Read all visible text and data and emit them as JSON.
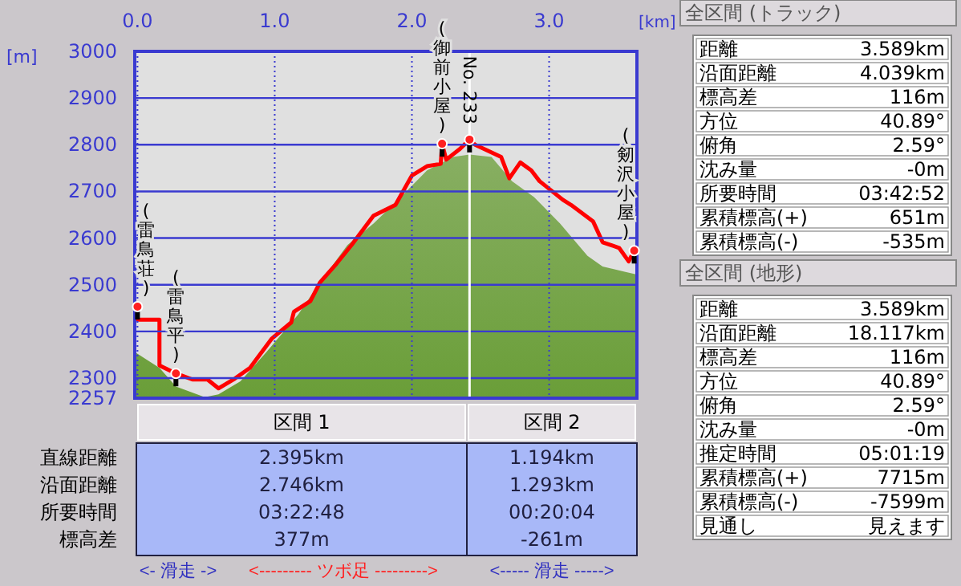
{
  "chart_data": [
    {
      "type": "line",
      "xlabel": "[km]",
      "ylabel": "[m]",
      "xlim": [
        -0.02,
        3.64
      ],
      "ylim": [
        2257,
        3000
      ],
      "xticks": [
        {
          "value": 0,
          "label": "0.0"
        },
        {
          "value": 1,
          "label": "1.0"
        },
        {
          "value": 2,
          "label": "2.0"
        },
        {
          "value": 3,
          "label": "3.0"
        }
      ],
      "yticks": [
        2257,
        2300,
        2400,
        2500,
        2600,
        2700,
        2800,
        2900,
        3000
      ],
      "grid": true,
      "series": [
        {
          "type": "area",
          "color": "#6a9e38",
          "x": [
            -0.02,
            0.16,
            0.28,
            0.49,
            0.59,
            0.75,
            0.94,
            1.17,
            1.33,
            1.53,
            1.72,
            1.92,
            2.11,
            2.3,
            2.42,
            2.58,
            2.73,
            2.89,
            3.08,
            3.28,
            3.39,
            3.55,
            3.64
          ],
          "values": [
            2356,
            2322,
            2282,
            2259,
            2265,
            2293,
            2356,
            2436,
            2505,
            2585,
            2631,
            2688,
            2745,
            2774,
            2779,
            2774,
            2722,
            2688,
            2631,
            2562,
            2539,
            2528,
            2522
          ]
        },
        {
          "type": "line",
          "color": "#ff0000",
          "x": [
            0,
            0,
            0.16,
            0.16,
            0.28,
            0.4,
            0.51,
            0.59,
            0.71,
            0.82,
            0.98,
            1.12,
            1.14,
            1.26,
            1.33,
            1.45,
            1.56,
            1.72,
            1.88,
            2.0,
            2.11,
            2.21,
            2.22,
            2.25,
            2.35,
            2.42,
            2.46,
            2.65,
            2.71,
            2.79,
            2.87,
            2.93,
            3.1,
            3.16,
            3.32,
            3.39,
            3.51,
            3.58,
            3.62
          ],
          "values": [
            2453,
            2425,
            2425,
            2327,
            2310,
            2297,
            2297,
            2278,
            2299,
            2322,
            2385,
            2419,
            2442,
            2465,
            2505,
            2545,
            2585,
            2648,
            2671,
            2734,
            2754,
            2759,
            2802,
            2768,
            2791,
            2811,
            2800,
            2774,
            2728,
            2762,
            2745,
            2722,
            2682,
            2671,
            2636,
            2591,
            2579,
            2550,
            2573
          ]
        }
      ],
      "ref_lines": [
        {
          "axis": "x",
          "value": 2.42,
          "color": "#ffffff"
        }
      ],
      "annotations": [
        {
          "text": "(雷鳥荘)",
          "x": 0,
          "y": 2453
        },
        {
          "text": "(雷鳥平)",
          "x": 0.28,
          "y": 2310
        },
        {
          "text": "(御前小屋)",
          "x": 2.22,
          "y": 2802
        },
        {
          "text": "No. 233",
          "x": 2.42,
          "y": 2811
        },
        {
          "text": "(剱沢小屋)",
          "x": 3.62,
          "y": 2573
        }
      ]
    },
    {
      "type": "other",
      "categories": [
        "区間 1",
        "区間 2"
      ],
      "y_categories": [
        "直線距離",
        "沿面距離",
        "所要時間",
        "標高差"
      ],
      "cell_labels": [
        [
          "2.395km",
          "1.194km"
        ],
        [
          "2.746km",
          "1.293km"
        ],
        [
          "03:22:48",
          "00:20:04"
        ],
        [
          "377m",
          "-261m"
        ]
      ],
      "annotations": [
        "<- 滑走 ->",
        "<--------- ツボ足 --------->",
        "<----- 滑走 ----->"
      ]
    },
    {
      "type": "other",
      "title": "全区間 (トラック)",
      "y_categories": [
        "距離",
        "沿面距離",
        "標高差",
        "方位",
        "俯角",
        "沈み量",
        "所要時間",
        "累積標高(+)",
        "累積標高(-)"
      ],
      "cell_labels": [
        [
          "3.589km"
        ],
        [
          "4.039km"
        ],
        [
          "116m"
        ],
        [
          "40.89°"
        ],
        [
          "2.59°"
        ],
        [
          "-0m"
        ],
        [
          "03:42:52"
        ],
        [
          "651m"
        ],
        [
          "-535m"
        ]
      ]
    },
    {
      "type": "other",
      "title": "全区間 (地形)",
      "y_categories": [
        "距離",
        "沿面距離",
        "標高差",
        "方位",
        "俯角",
        "沈み量",
        "推定時間",
        "累積標高(+)",
        "累積標高(-)",
        "見通し"
      ],
      "cell_labels": [
        [
          "3.589km"
        ],
        [
          "18.117km"
        ],
        [
          "116m"
        ],
        [
          "40.89°"
        ],
        [
          "2.59°"
        ],
        [
          "-0m"
        ],
        [
          "05:01:19"
        ],
        [
          "7715m"
        ],
        [
          "-7599m"
        ],
        [
          "見えます"
        ]
      ]
    }
  ]
}
